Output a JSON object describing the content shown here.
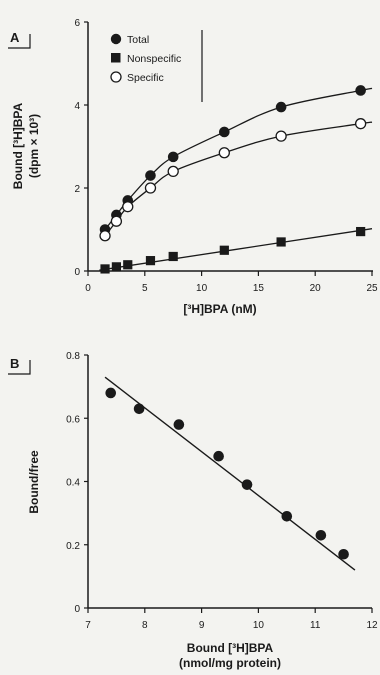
{
  "chart_data": [
    {
      "panel_label": "A",
      "type": "scatter",
      "title": "",
      "xlabel": "[³H]BPA (nM)",
      "ylabel_line1": "Bound [³H]BPA",
      "ylabel_line2": "(dpm × 10³)",
      "xlim": [
        0,
        25
      ],
      "ylim": [
        0,
        6
      ],
      "xticks": [
        0,
        5,
        10,
        15,
        20,
        25
      ],
      "yticks": [
        0,
        2,
        4,
        6
      ],
      "grid": false,
      "legend_position": "top-left",
      "series": [
        {
          "name": "Total",
          "marker": "filled-circle",
          "x": [
            1.5,
            2.5,
            3.5,
            5.5,
            7.5,
            12,
            17,
            24
          ],
          "y": [
            1.0,
            1.35,
            1.7,
            2.3,
            2.75,
            3.35,
            3.95,
            4.35
          ]
        },
        {
          "name": "Nonspecific",
          "marker": "filled-square",
          "x": [
            1.5,
            2.5,
            3.5,
            5.5,
            7.5,
            12,
            17,
            24
          ],
          "y": [
            0.05,
            0.1,
            0.15,
            0.25,
            0.35,
            0.5,
            0.7,
            0.95
          ]
        },
        {
          "name": "Specific",
          "marker": "open-circle",
          "x": [
            1.5,
            2.5,
            3.5,
            5.5,
            7.5,
            12,
            17,
            24
          ],
          "y": [
            0.85,
            1.2,
            1.55,
            2.0,
            2.4,
            2.85,
            3.25,
            3.55
          ]
        }
      ]
    },
    {
      "panel_label": "B",
      "type": "scatter",
      "title": "",
      "xlabel_line1": "Bound [³H]BPA",
      "xlabel_line2": "(nmol/mg protein)",
      "ylabel": "Bound/free",
      "xlim": [
        7,
        12
      ],
      "ylim": [
        0,
        0.8
      ],
      "xticks": [
        7,
        8,
        9,
        10,
        11,
        12
      ],
      "yticks": [
        0,
        0.2,
        0.4,
        0.6,
        0.8
      ],
      "grid": false,
      "series": [
        {
          "marker": "filled-circle",
          "x": [
            7.4,
            7.9,
            8.6,
            9.3,
            9.8,
            10.5,
            11.1,
            11.5
          ],
          "y": [
            0.68,
            0.63,
            0.58,
            0.48,
            0.39,
            0.29,
            0.23,
            0.17
          ]
        }
      ],
      "fit_line": {
        "x": [
          7.3,
          11.7
        ],
        "y": [
          0.73,
          0.12
        ]
      }
    }
  ]
}
